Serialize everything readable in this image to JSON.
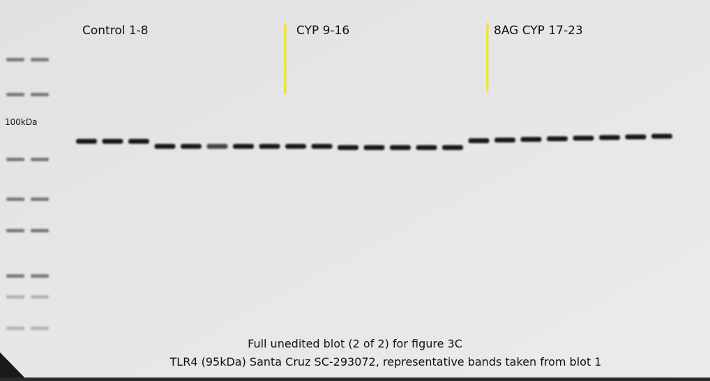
{
  "lane_groups": [
    "Control 1-8",
    "CYP 9-16",
    "8AG CYP 17-23"
  ],
  "marker_label": "100kDa",
  "caption": [
    "Full unedited blot (2 of 2) for figure 3C",
    "TLR4 (95kDa) Santa Cruz SC-293072, representative bands taken from blot 1"
  ]
}
